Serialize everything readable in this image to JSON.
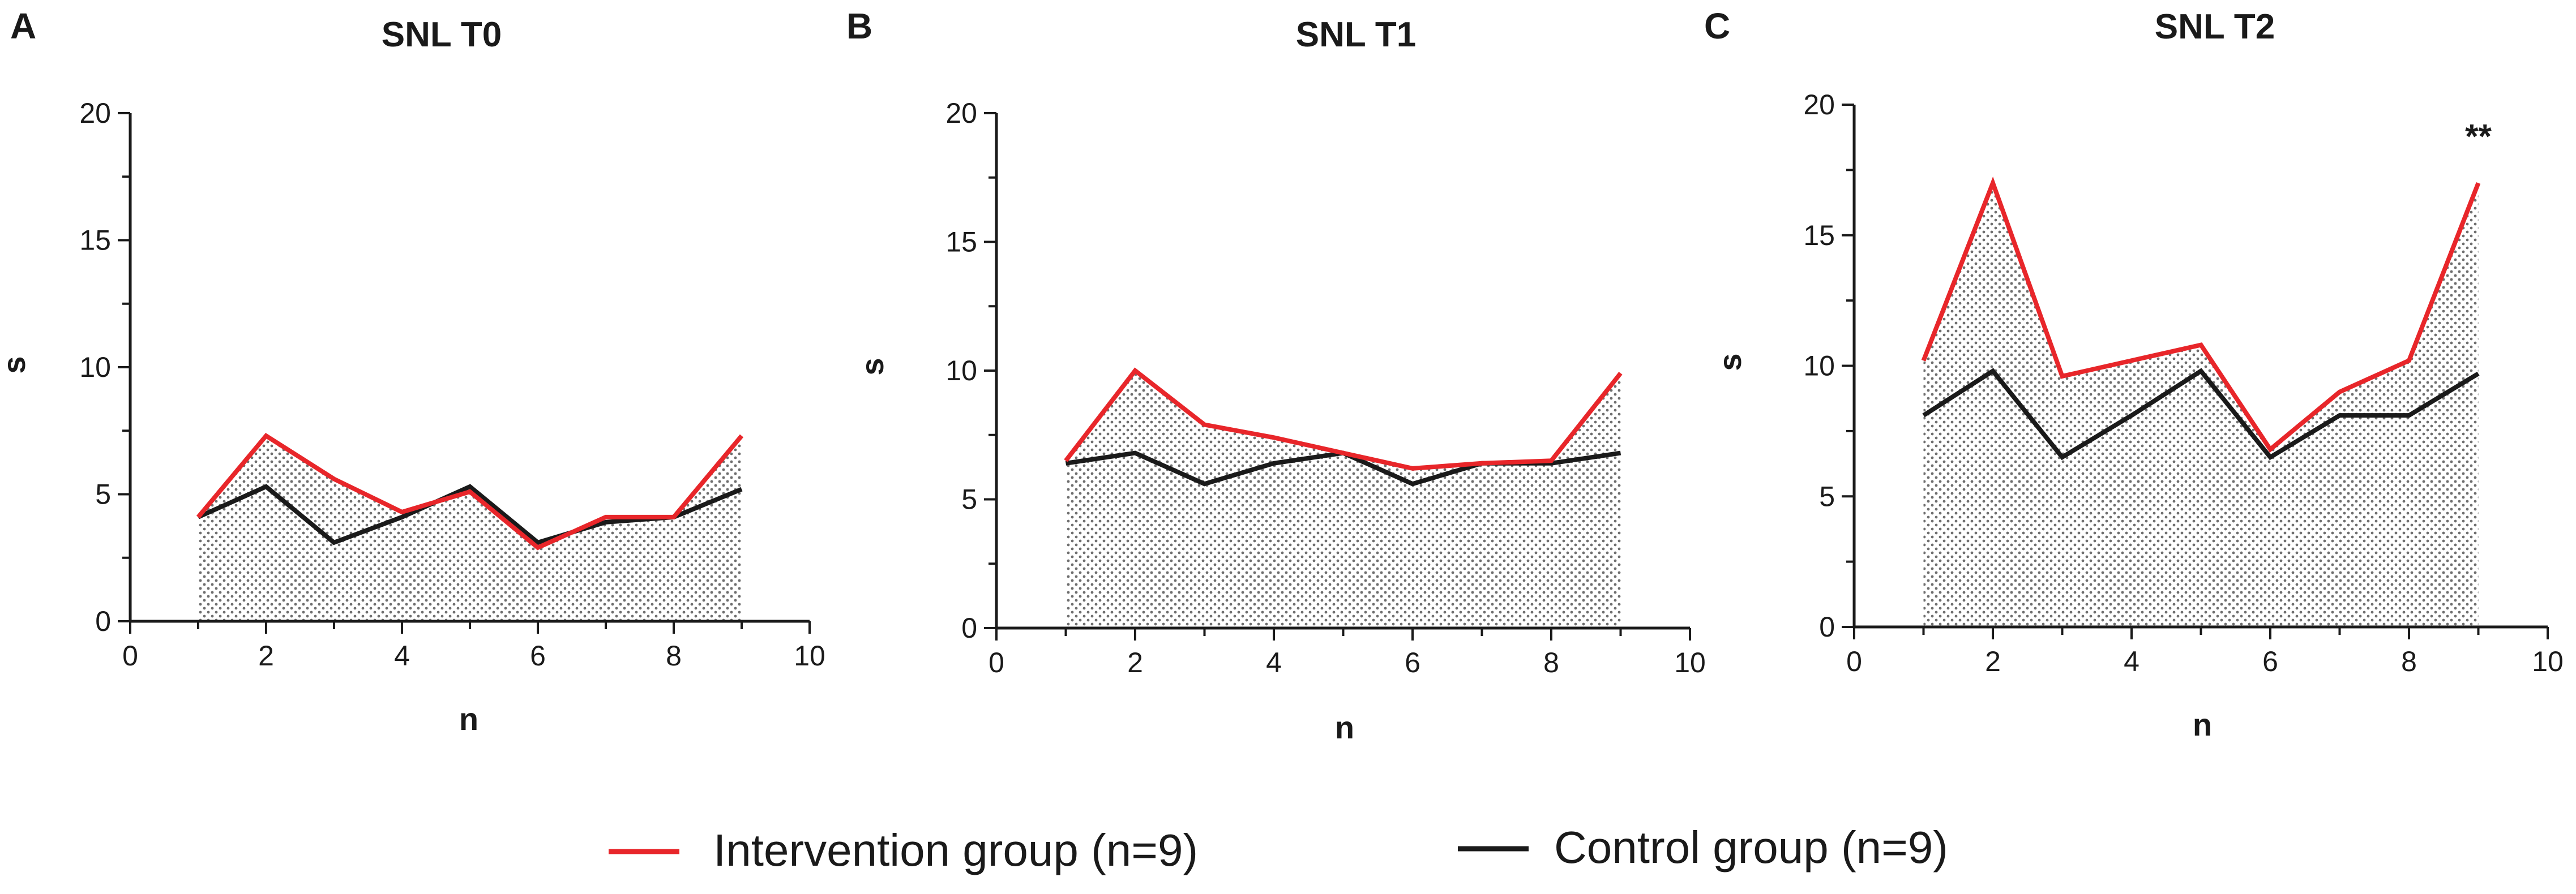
{
  "figure": {
    "legend": [
      {
        "label": "Intervention group (n=9)",
        "color": "#e8262a"
      },
      {
        "label": "Control group (n=9)",
        "color": "#1a1a1a"
      }
    ]
  },
  "colors": {
    "intervention": "#e8262a",
    "control": "#1a1a1a",
    "axis": "#1a1a1a",
    "fill_dot": "#6e6e6e"
  },
  "chart_data": [
    {
      "type": "line",
      "panel": "A",
      "title": "SNL T0",
      "xlabel": "n",
      "ylabel": "s",
      "xlim": [
        0,
        10
      ],
      "ylim": [
        0,
        20
      ],
      "xticks": [
        0,
        2,
        4,
        6,
        8,
        10
      ],
      "yticks": [
        0,
        5,
        10,
        15,
        20
      ],
      "x": [
        1,
        2,
        3,
        4,
        5,
        6,
        7,
        8,
        9
      ],
      "series": [
        {
          "name": "Intervention group (n=9)",
          "values": [
            4.1,
            7.3,
            5.6,
            4.3,
            5.1,
            2.9,
            4.1,
            4.1,
            7.3
          ]
        },
        {
          "name": "Control group (n=9)",
          "values": [
            4.1,
            5.3,
            3.1,
            4.1,
            5.3,
            3.1,
            3.9,
            4.1,
            5.2
          ]
        }
      ],
      "annotation": ""
    },
    {
      "type": "line",
      "panel": "B",
      "title": "SNL T1",
      "xlabel": "n",
      "ylabel": "s",
      "xlim": [
        0,
        10
      ],
      "ylim": [
        0,
        20
      ],
      "xticks": [
        0,
        2,
        4,
        6,
        8,
        10
      ],
      "yticks": [
        0,
        5,
        10,
        15,
        20
      ],
      "x": [
        1,
        2,
        3,
        4,
        5,
        6,
        7,
        8,
        9
      ],
      "series": [
        {
          "name": "Intervention group (n=9)",
          "values": [
            6.5,
            10.0,
            7.9,
            7.4,
            6.8,
            6.2,
            6.4,
            6.5,
            9.9
          ]
        },
        {
          "name": "Control group (n=9)",
          "values": [
            6.4,
            6.8,
            5.6,
            6.4,
            6.8,
            5.6,
            6.4,
            6.4,
            6.8
          ]
        }
      ],
      "annotation": ""
    },
    {
      "type": "line",
      "panel": "C",
      "title": "SNL T2",
      "xlabel": "n",
      "ylabel": "s",
      "xlim": [
        0,
        10
      ],
      "ylim": [
        0,
        20
      ],
      "xticks": [
        0,
        2,
        4,
        6,
        8,
        10
      ],
      "yticks": [
        0,
        5,
        10,
        15,
        20
      ],
      "x": [
        1,
        2,
        3,
        4,
        5,
        6,
        7,
        8,
        9
      ],
      "series": [
        {
          "name": "Intervention group (n=9)",
          "values": [
            10.2,
            17.0,
            9.6,
            10.2,
            10.8,
            6.8,
            9.0,
            10.2,
            17.0
          ]
        },
        {
          "name": "Control group (n=9)",
          "values": [
            8.1,
            9.8,
            6.5,
            8.1,
            9.8,
            6.5,
            8.1,
            8.1,
            9.7
          ]
        }
      ],
      "annotation": "**"
    }
  ]
}
